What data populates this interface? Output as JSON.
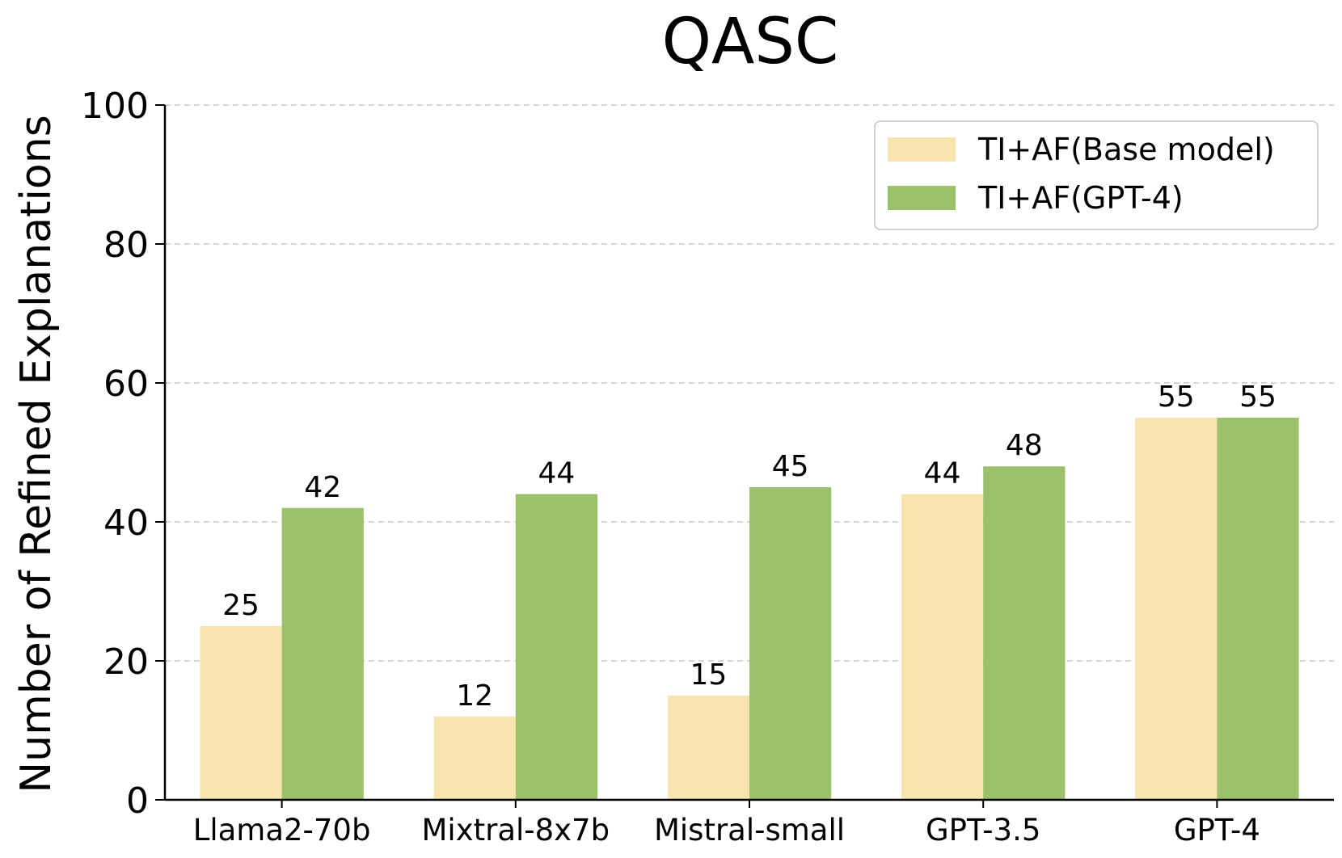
{
  "chart_data": {
    "type": "bar",
    "title": "QASC",
    "xlabel": "",
    "ylabel": "Number of Refined Explanations",
    "ylim": [
      0,
      100
    ],
    "yticks": [
      0,
      20,
      40,
      60,
      80,
      100
    ],
    "grid": "horizontal dashed",
    "legend_position": "top-right",
    "categories": [
      "Llama2-70b",
      "Mixtral-8x7b",
      "Mistral-small",
      "GPT-3.5",
      "GPT-4"
    ],
    "series": [
      {
        "name": "TI+AF(Base model)",
        "color": "#f7e4ae",
        "values": [
          25,
          12,
          15,
          44,
          55
        ]
      },
      {
        "name": "TI+AF(GPT-4)",
        "color": "#9bc16a",
        "values": [
          42,
          44,
          45,
          48,
          55
        ]
      }
    ]
  }
}
